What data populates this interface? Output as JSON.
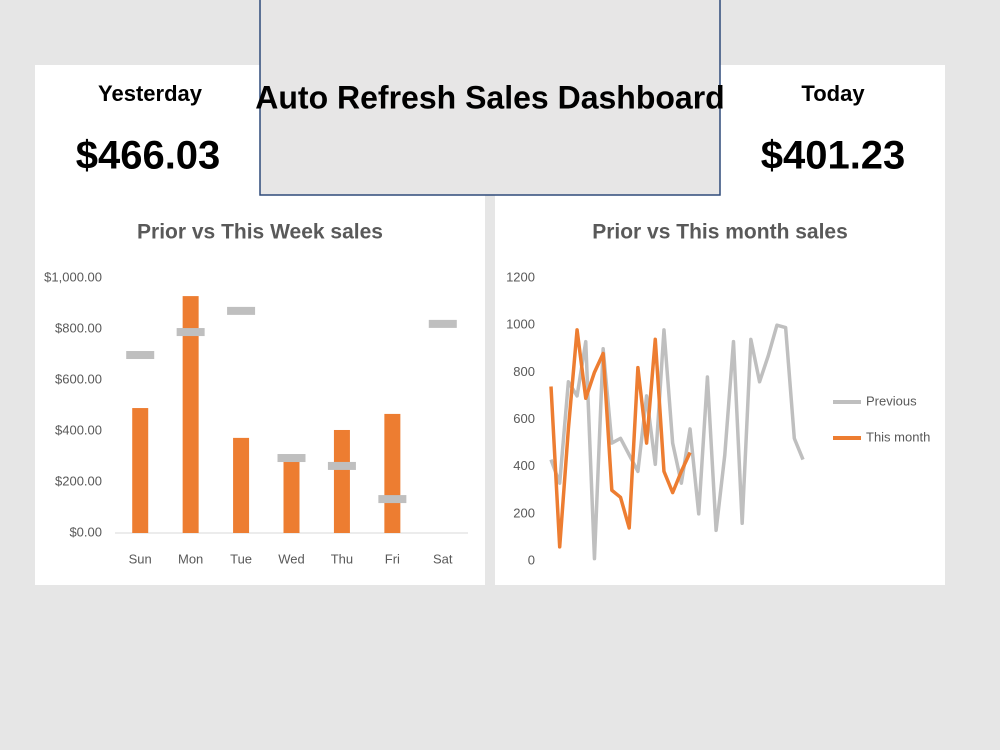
{
  "header": {
    "title": "Auto Refresh Sales Dashboard"
  },
  "kpis": [
    {
      "label": "Yesterday",
      "value": "$466.03"
    },
    {
      "label": "Today",
      "value": "$401.23"
    }
  ],
  "chart_data": [
    {
      "type": "bar",
      "title": "Prior vs This Week sales",
      "categories": [
        "Sun",
        "Mon",
        "Tue",
        "Wed",
        "Thu",
        "Fri",
        "Sat"
      ],
      "series": [
        {
          "type": "bar",
          "color": "#ed7d31",
          "values": [
            490,
            929,
            373,
            286,
            404,
            467,
            null
          ]
        },
        {
          "type": "marker",
          "color": "#bfbfbf",
          "values": [
            698,
            788,
            871,
            294,
            263,
            133,
            820
          ]
        }
      ],
      "ylim": [
        0,
        1000
      ],
      "yticks": [
        {
          "value": 0,
          "label": "$0.00"
        },
        {
          "value": 200,
          "label": "$200.00"
        },
        {
          "value": 400,
          "label": "$400.00"
        },
        {
          "value": 600,
          "label": "$600.00"
        },
        {
          "value": 800,
          "label": "$800.00"
        },
        {
          "value": 1000,
          "label": "$1,000.00"
        }
      ]
    },
    {
      "type": "line",
      "title": "Prior vs This month sales",
      "series": [
        {
          "name": "Previous",
          "color": "#bfbfbf",
          "values": [
            430,
            330,
            760,
            700,
            930,
            10,
            900,
            500,
            520,
            450,
            380,
            700,
            410,
            980,
            500,
            330,
            560,
            200,
            780,
            130,
            450,
            930,
            160,
            940,
            760,
            870,
            1000,
            990,
            520,
            430
          ]
        },
        {
          "name": "This month",
          "color": "#ed7d31",
          "values": [
            740,
            60,
            560,
            980,
            690,
            800,
            880,
            300,
            270,
            140,
            820,
            500,
            940,
            380,
            290,
            380,
            460,
            null,
            null,
            null,
            null,
            null,
            null,
            null,
            null,
            null,
            null,
            null,
            null,
            null
          ]
        }
      ],
      "ylim": [
        0,
        1200
      ],
      "yticks": [
        0,
        200,
        400,
        600,
        800,
        1000,
        1200
      ],
      "legend": "right"
    }
  ]
}
